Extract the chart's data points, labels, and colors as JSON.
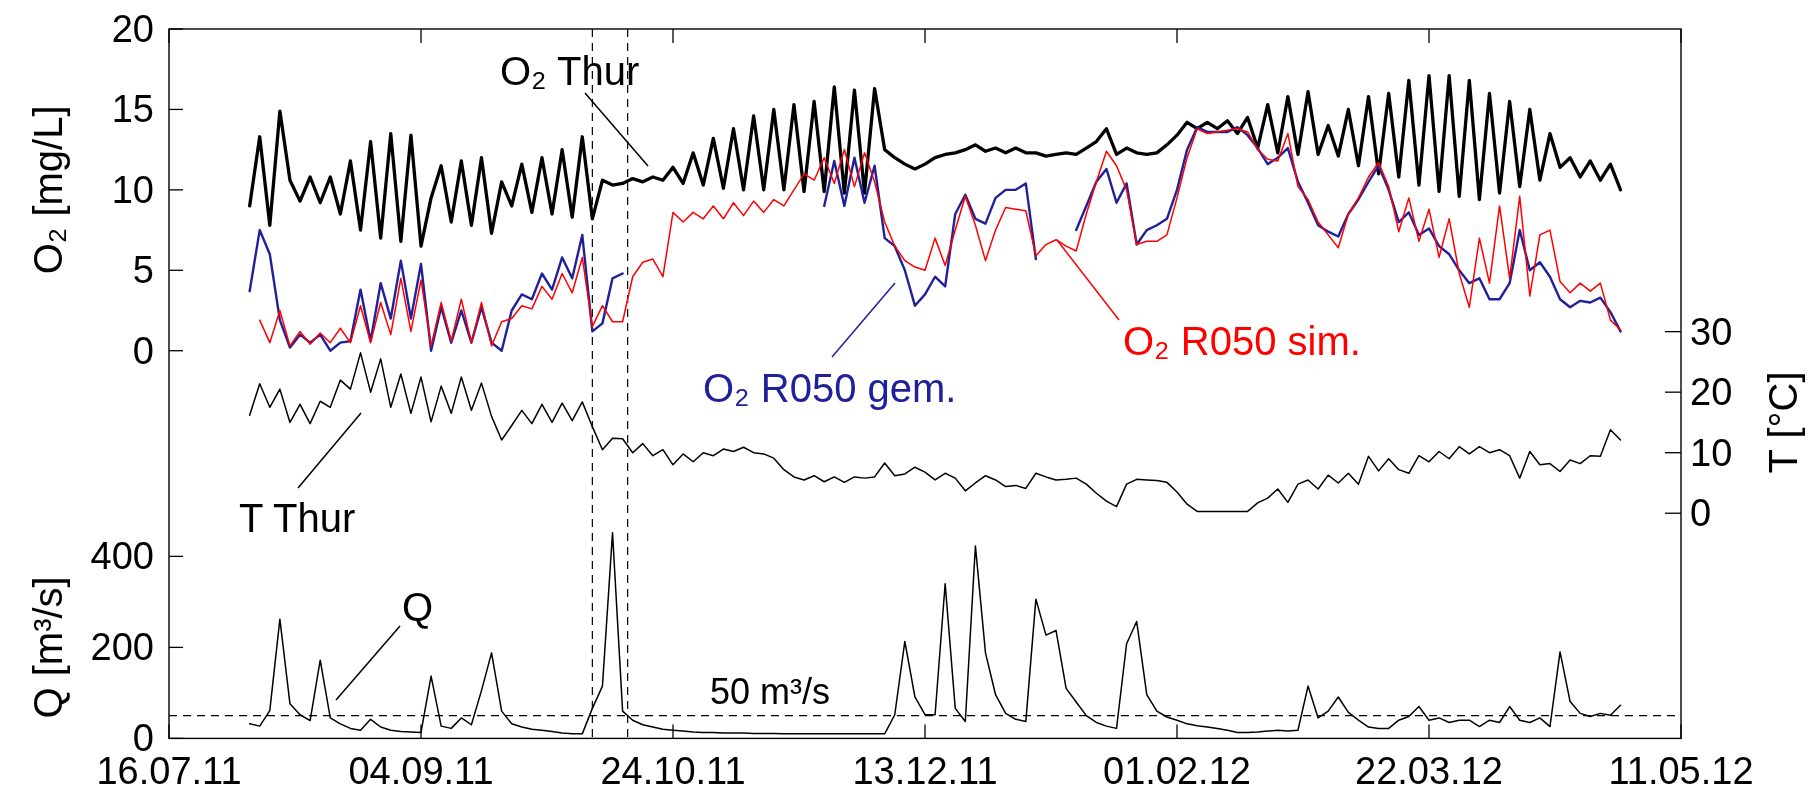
{
  "chart_data": {
    "type": "line",
    "x": [
      "2011-08-01",
      "2011-08-03",
      "2011-08-05",
      "2011-08-07",
      "2011-08-09",
      "2011-08-11",
      "2011-08-13",
      "2011-08-15",
      "2011-08-17",
      "2011-08-19",
      "2011-08-21",
      "2011-08-23",
      "2011-08-25",
      "2011-08-27",
      "2011-08-29",
      "2011-08-31",
      "2011-09-02",
      "2011-09-04",
      "2011-09-06",
      "2011-09-08",
      "2011-09-10",
      "2011-09-12",
      "2011-09-14",
      "2011-09-16",
      "2011-09-18",
      "2011-09-20",
      "2011-09-22",
      "2011-09-24",
      "2011-09-26",
      "2011-09-28",
      "2011-09-30",
      "2011-10-02",
      "2011-10-04",
      "2011-10-06",
      "2011-10-08",
      "2011-10-10",
      "2011-10-12",
      "2011-10-14",
      "2011-10-16",
      "2011-10-18",
      "2011-10-20",
      "2011-10-22",
      "2011-10-24",
      "2011-10-26",
      "2011-10-28",
      "2011-10-30",
      "2011-11-01",
      "2011-11-03",
      "2011-11-05",
      "2011-11-07",
      "2011-11-09",
      "2011-11-11",
      "2011-11-13",
      "2011-11-15",
      "2011-11-17",
      "2011-11-19",
      "2011-11-21",
      "2011-11-23",
      "2011-11-25",
      "2011-11-27",
      "2011-11-29",
      "2011-12-01",
      "2011-12-03",
      "2011-12-05",
      "2011-12-07",
      "2011-12-09",
      "2011-12-11",
      "2011-12-13",
      "2011-12-15",
      "2011-12-17",
      "2011-12-19",
      "2011-12-21",
      "2011-12-23",
      "2011-12-25",
      "2011-12-27",
      "2011-12-29",
      "2011-12-31",
      "2012-01-02",
      "2012-01-04",
      "2012-01-06",
      "2012-01-08",
      "2012-01-10",
      "2012-01-12",
      "2012-01-14",
      "2012-01-16",
      "2012-01-18",
      "2012-01-20",
      "2012-01-22",
      "2012-01-24",
      "2012-01-26",
      "2012-01-28",
      "2012-01-30",
      "2012-02-01",
      "2012-02-03",
      "2012-02-05",
      "2012-02-07",
      "2012-02-09",
      "2012-02-11",
      "2012-02-13",
      "2012-02-15",
      "2012-02-17",
      "2012-02-19",
      "2012-02-21",
      "2012-02-23",
      "2012-02-25",
      "2012-02-27",
      "2012-02-29",
      "2012-03-02",
      "2012-03-04",
      "2012-03-06",
      "2012-03-08",
      "2012-03-10",
      "2012-03-12",
      "2012-03-14",
      "2012-03-16",
      "2012-03-18",
      "2012-03-20",
      "2012-03-22",
      "2012-03-24",
      "2012-03-26",
      "2012-03-28",
      "2012-03-30",
      "2012-04-01",
      "2012-04-03",
      "2012-04-05",
      "2012-04-07",
      "2012-04-09",
      "2012-04-11",
      "2012-04-13",
      "2012-04-15",
      "2012-04-17",
      "2012-04-19",
      "2012-04-21",
      "2012-04-23",
      "2012-04-25",
      "2012-04-27",
      "2012-04-29"
    ],
    "series": [
      {
        "name": "O₂ Thur",
        "color": "#000000",
        "axis": "y",
        "values": [
          9.0,
          13.3,
          7.8,
          14.9,
          10.6,
          9.3,
          10.8,
          9.2,
          10.8,
          8.5,
          11.8,
          7.5,
          13.0,
          7.0,
          13.5,
          6.8,
          13.4,
          6.5,
          9.5,
          11.5,
          8.0,
          11.8,
          7.8,
          12.0,
          7.3,
          10.5,
          9.0,
          11.6,
          8.6,
          12.0,
          8.5,
          12.5,
          8.3,
          13.3,
          8.2,
          10.6,
          10.3,
          10.4,
          10.7,
          10.5,
          10.8,
          10.6,
          11.4,
          10.4,
          12.3,
          10.3,
          13.2,
          10.1,
          13.8,
          10.0,
          14.6,
          10.0,
          15.0,
          10.0,
          15.3,
          9.9,
          15.5,
          9.9,
          16.4,
          9.8,
          16.2,
          9.8,
          16.3,
          12.5,
          12.0,
          11.6,
          11.3,
          11.6,
          12.0,
          12.2,
          12.3,
          12.5,
          12.8,
          12.4,
          12.6,
          12.3,
          12.6,
          12.3,
          12.3,
          12.1,
          12.2,
          12.3,
          12.2,
          12.6,
          13.0,
          13.8,
          12.2,
          12.6,
          12.3,
          12.2,
          12.3,
          12.8,
          13.4,
          14.2,
          13.8,
          14.2,
          13.8,
          14.3,
          13.5,
          14.5,
          12.6,
          15.3,
          12.3,
          15.8,
          12.2,
          16.1,
          12.2,
          14.0,
          12.1,
          15.0,
          11.5,
          15.8,
          11.0,
          16.0,
          10.8,
          16.8,
          10.3,
          17.1,
          9.9,
          17.1,
          9.6,
          16.8,
          9.4,
          16.0,
          9.8,
          15.5,
          10.2,
          15.0,
          10.6,
          13.5,
          11.4,
          12.0,
          10.8,
          11.8,
          10.6,
          11.6,
          10.0
        ]
      },
      {
        "name": "O₂ R050 gem.",
        "color": "#20209a",
        "axis": "y",
        "values": [
          3.7,
          7.5,
          6.0,
          1.9,
          0.2,
          1.0,
          0.5,
          1.0,
          0.0,
          0.5,
          0.6,
          3.8,
          0.6,
          4.2,
          2.0,
          5.6,
          2.0,
          5.4,
          0.0,
          2.7,
          0.5,
          2.5,
          0.5,
          2.7,
          0.5,
          0.0,
          2.5,
          3.5,
          3.2,
          4.8,
          3.8,
          5.8,
          4.5,
          7.2,
          1.2,
          1.7,
          4.5,
          4.8,
          null,
          null,
          null,
          null,
          null,
          null,
          null,
          null,
          null,
          null,
          null,
          null,
          null,
          null,
          null,
          null,
          null,
          null,
          null,
          9.0,
          11.8,
          9.0,
          12.0,
          9.2,
          11.5,
          7.0,
          6.5,
          5.0,
          2.8,
          3.5,
          4.6,
          4.0,
          8.5,
          9.7,
          8.2,
          7.9,
          9.5,
          10.0,
          10.0,
          10.4,
          5.7,
          null,
          null,
          null,
          7.5,
          9.0,
          10.5,
          11.3,
          9.2,
          10.4,
          6.6,
          7.5,
          7.8,
          8.2,
          10.0,
          12.5,
          13.9,
          13.6,
          13.6,
          13.6,
          13.9,
          13.4,
          12.6,
          11.6,
          12.0,
          12.6,
          10.5,
          9.2,
          7.8,
          7.4,
          7.1,
          8.5,
          9.4,
          10.5,
          11.5,
          10.0,
          8.0,
          8.6,
          7.2,
          7.6,
          6.5,
          6.0,
          5.0,
          4.2,
          4.5,
          3.2,
          3.2,
          4.2,
          7.5,
          5.0,
          5.5,
          4.6,
          3.2,
          2.7,
          3.1,
          3.0,
          3.3,
          2.4,
          1.2
        ]
      },
      {
        "name": "O₂ R050 sim.",
        "color": "#ff0000",
        "axis": "y",
        "values": [
          null,
          1.9,
          0.5,
          2.5,
          0.3,
          1.2,
          0.4,
          1.1,
          0.5,
          1.4,
          0.5,
          2.8,
          0.5,
          3.0,
          1.0,
          4.5,
          1.2,
          4.4,
          0.3,
          3.0,
          0.6,
          3.2,
          0.5,
          3.0,
          0.3,
          1.8,
          2.0,
          2.8,
          2.6,
          4.0,
          3.2,
          4.8,
          3.6,
          5.8,
          1.5,
          2.8,
          1.8,
          1.8,
          4.6,
          5.5,
          5.7,
          4.6,
          8.6,
          8.0,
          8.6,
          8.2,
          9.0,
          8.2,
          9.2,
          8.4,
          9.3,
          8.6,
          9.4,
          9.0,
          10.0,
          11.0,
          10.6,
          12.0,
          10.4,
          12.5,
          10.2,
          12.3,
          10.5,
          8.0,
          6.5,
          5.6,
          5.2,
          5.0,
          7.0,
          5.3,
          7.5,
          9.6,
          7.8,
          5.6,
          7.5,
          8.9,
          8.8,
          8.7,
          5.9,
          6.6,
          6.9,
          6.5,
          6.2,
          8.5,
          10.5,
          12.4,
          11.5,
          10.0,
          6.6,
          6.8,
          6.8,
          7.2,
          9.5,
          12.0,
          13.8,
          13.5,
          13.6,
          13.7,
          13.8,
          13.6,
          12.5,
          11.9,
          11.8,
          13.5,
          10.2,
          9.4,
          8.0,
          7.2,
          6.4,
          8.5,
          9.5,
          10.8,
          11.7,
          10.2,
          7.4,
          9.5,
          6.8,
          8.8,
          5.8,
          8.2,
          4.8,
          2.7,
          7.0,
          4.2,
          9.0,
          4.5,
          9.6,
          3.4,
          7.2,
          7.5,
          4.3,
          3.6,
          4.2,
          3.7,
          4.2,
          1.9,
          1.3
        ]
      },
      {
        "name": "T Thur",
        "color": "#000000",
        "axis": "y2",
        "values": [
          16.2,
          21.4,
          17.5,
          20.5,
          15.0,
          18.0,
          14.8,
          18.5,
          17.5,
          22.0,
          20.5,
          26.5,
          20.0,
          25.5,
          17.5,
          23.0,
          16.5,
          22.5,
          15.1,
          21.0,
          16.5,
          22.5,
          17.0,
          21.5,
          16.0,
          12.1,
          14.5,
          17.0,
          14.8,
          18.0,
          15.0,
          18.2,
          15.3,
          18.4,
          14.3,
          10.5,
          12.4,
          12.3,
          10.0,
          11.5,
          9.5,
          10.5,
          8.0,
          9.8,
          8.5,
          10.0,
          9.5,
          10.6,
          10.2,
          10.9,
          10.0,
          9.8,
          9.1,
          7.2,
          6.0,
          5.5,
          6.2,
          5.2,
          6.0,
          5.1,
          6.0,
          5.8,
          6.0,
          8.3,
          6.2,
          6.5,
          7.6,
          6.8,
          5.5,
          6.6,
          5.8,
          3.7,
          5.0,
          6.2,
          5.5,
          4.4,
          4.6,
          4.1,
          6.6,
          6.0,
          5.5,
          5.6,
          5.8,
          4.8,
          3.3,
          2.0,
          1.1,
          4.8,
          5.6,
          5.5,
          5.4,
          5.1,
          3.5,
          1.5,
          0.3,
          0.3,
          0.3,
          0.3,
          0.3,
          0.3,
          1.7,
          2.5,
          4.0,
          1.8,
          4.8,
          5.5,
          4.0,
          6.3,
          5.0,
          6.6,
          4.8,
          9.4,
          7.0,
          9.0,
          7.2,
          6.6,
          9.5,
          8.5,
          10.2,
          9.0,
          11.0,
          9.8,
          11.0,
          10.0,
          10.5,
          9.5,
          5.8,
          10.2,
          8.0,
          8.2,
          6.9,
          8.8,
          8.2,
          9.5,
          9.4,
          13.8,
          12.1
        ]
      },
      {
        "name": "Q",
        "color": "#000000",
        "axis": "y3",
        "values": [
          32,
          27,
          61,
          262,
          76,
          52,
          39,
          172,
          45,
          32,
          22,
          18,
          42,
          25,
          18,
          15,
          14,
          13,
          137,
          27,
          22,
          45,
          30,
          105,
          188,
          60,
          32,
          25,
          20,
          18,
          15,
          12,
          10,
          10,
          66,
          115,
          452,
          60,
          40,
          30,
          25,
          20,
          18,
          16,
          14,
          13,
          13,
          12,
          12,
          12,
          11,
          11,
          11,
          10,
          10,
          10,
          10,
          10,
          10,
          10,
          10,
          10,
          10,
          10,
          52,
          213,
          91,
          52,
          52,
          340,
          66,
          37,
          423,
          188,
          96,
          55,
          42,
          37,
          306,
          227,
          237,
          110,
          80,
          50,
          35,
          27,
          22,
          208,
          257,
          96,
          60,
          47,
          40,
          32,
          28,
          25,
          22,
          18,
          13,
          13,
          14,
          16,
          18,
          16,
          18,
          115,
          45,
          60,
          91,
          57,
          40,
          25,
          22,
          22,
          40,
          48,
          70,
          40,
          45,
          35,
          40,
          40,
          26,
          40,
          35,
          70,
          40,
          35,
          45,
          26,
          190,
          81,
          55,
          48,
          55,
          51,
          73
        ]
      }
    ],
    "xlim": [
      "2011-07-16",
      "2012-05-11"
    ],
    "xticks": [
      {
        "value": "2011-07-16",
        "label": "16.07.11"
      },
      {
        "value": "2011-09-04",
        "label": "04.09.11"
      },
      {
        "value": "2011-10-24",
        "label": "24.10.11"
      },
      {
        "value": "2011-12-13",
        "label": "13.12.11"
      },
      {
        "value": "2012-02-01",
        "label": "01.02.12"
      },
      {
        "value": "2012-03-22",
        "label": "22.03.12"
      },
      {
        "value": "2012-05-11",
        "label": "11.05.12"
      }
    ],
    "ylim": [
      -24.1,
      20
    ],
    "yticks": [
      0,
      5,
      10,
      15,
      20
    ],
    "y2lim": [
      -37.2,
      80
    ],
    "y2ticks": [
      0,
      10,
      20,
      30
    ],
    "y3lim": [
      0,
      1559
    ],
    "y3ticks": [
      0,
      200,
      400
    ],
    "legend": "top",
    "ylabel": "O₂ [mg/L]",
    "y2label": "T [°C]",
    "y3label": "Q [m³/s]",
    "ref_lines": [
      {
        "axis": "y3",
        "value": 50,
        "label": "50 m³/s",
        "line_style": "dashed"
      },
      {
        "axis": "x",
        "value": "2011-10-08",
        "line_style": "dashed"
      },
      {
        "axis": "x",
        "value": "2011-10-15",
        "line_style": "dashed"
      }
    ]
  }
}
